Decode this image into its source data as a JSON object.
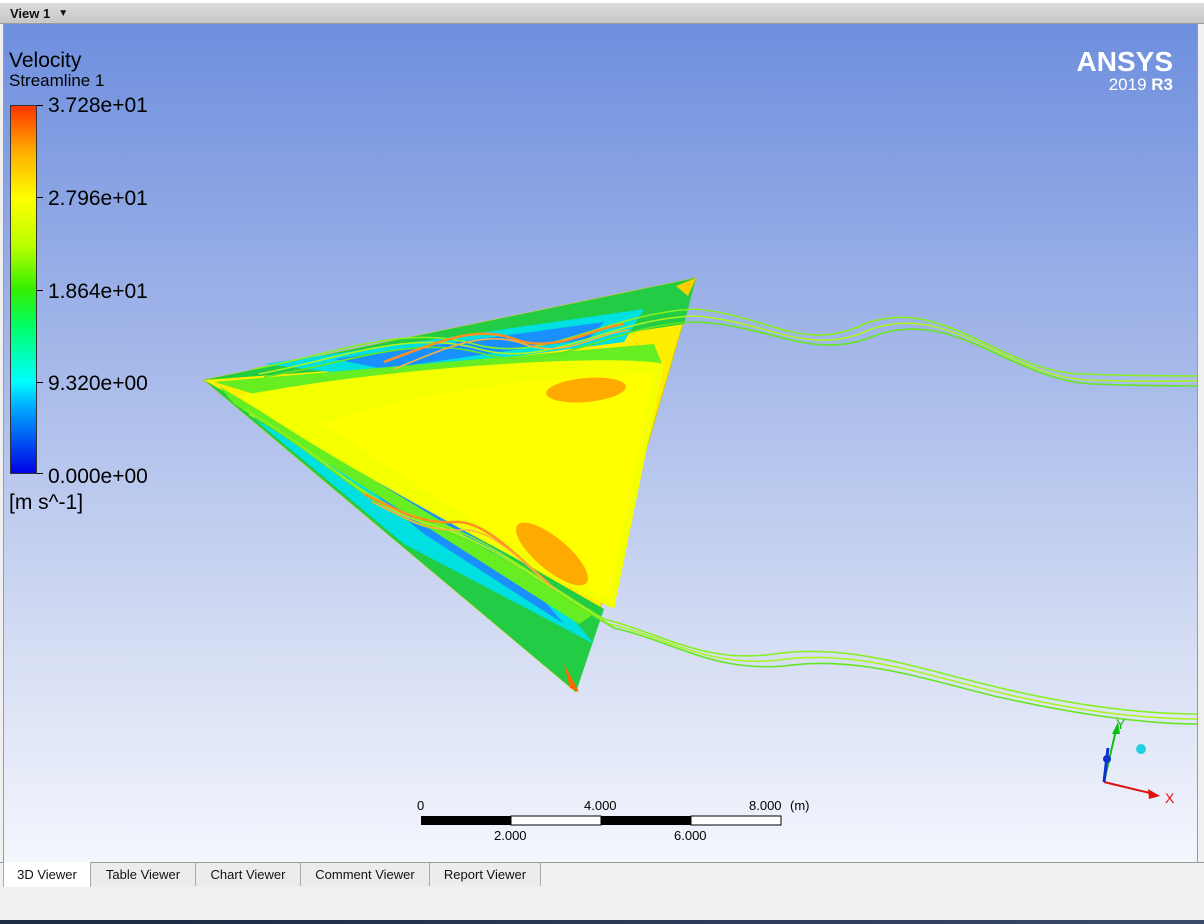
{
  "window": {
    "view_selector": "View 1",
    "view_selector_icon": "caret-down-icon"
  },
  "legend": {
    "title": "Velocity",
    "subtitle": "Streamline 1",
    "units": "[m s^-1]",
    "ticks": [
      "3.728e+01",
      "2.796e+01",
      "1.864e+01",
      "9.320e+00",
      "0.000e+00"
    ],
    "colormap": [
      "#0000e6",
      "#00ffff",
      "#33ee00",
      "#ffff00",
      "#ff3300"
    ]
  },
  "brand": {
    "logo": "ANSYS",
    "version_year": "2019",
    "version_release": "R3"
  },
  "scale_bar": {
    "top_labels": [
      "0",
      "4.000",
      "8.000"
    ],
    "bottom_labels": [
      "2.000",
      "6.000"
    ],
    "unit": "(m)"
  },
  "axes_triad": {
    "x_label": "X",
    "y_label": "Y",
    "x_color": "#e01010",
    "y_color": "#10c010",
    "z_color": "#1030d0"
  },
  "tabs": [
    {
      "label": "3D Viewer",
      "active": true
    },
    {
      "label": "Table Viewer",
      "active": false
    },
    {
      "label": "Chart Viewer",
      "active": false
    },
    {
      "label": "Comment Viewer",
      "active": false
    },
    {
      "label": "Report Viewer",
      "active": false
    }
  ]
}
